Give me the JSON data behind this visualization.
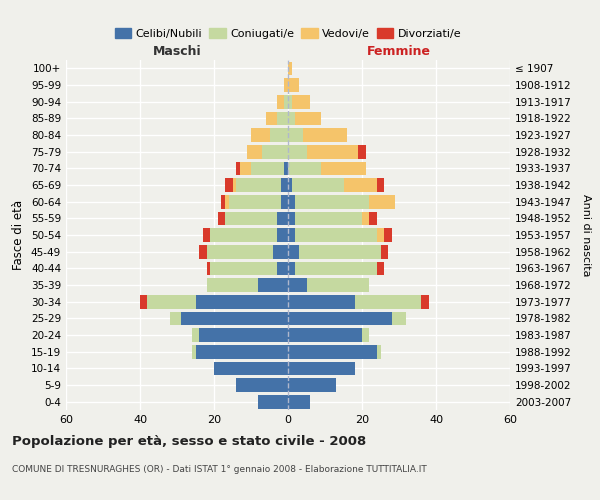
{
  "age_groups": [
    "0-4",
    "5-9",
    "10-14",
    "15-19",
    "20-24",
    "25-29",
    "30-34",
    "35-39",
    "40-44",
    "45-49",
    "50-54",
    "55-59",
    "60-64",
    "65-69",
    "70-74",
    "75-79",
    "80-84",
    "85-89",
    "90-94",
    "95-99",
    "100+"
  ],
  "birth_years": [
    "2003-2007",
    "1998-2002",
    "1993-1997",
    "1988-1992",
    "1983-1987",
    "1978-1982",
    "1973-1977",
    "1968-1972",
    "1963-1967",
    "1958-1962",
    "1953-1957",
    "1948-1952",
    "1943-1947",
    "1938-1942",
    "1933-1937",
    "1928-1932",
    "1923-1927",
    "1918-1922",
    "1913-1917",
    "1908-1912",
    "≤ 1907"
  ],
  "males": {
    "celibi": [
      8,
      14,
      20,
      25,
      24,
      29,
      25,
      8,
      3,
      4,
      3,
      3,
      2,
      2,
      1,
      0,
      0,
      0,
      0,
      0,
      0
    ],
    "coniugati": [
      0,
      0,
      0,
      1,
      2,
      3,
      13,
      14,
      18,
      18,
      18,
      14,
      14,
      12,
      9,
      7,
      5,
      3,
      1,
      0,
      0
    ],
    "vedovi": [
      0,
      0,
      0,
      0,
      0,
      0,
      0,
      0,
      0,
      0,
      0,
      0,
      1,
      1,
      3,
      4,
      5,
      3,
      2,
      1,
      0
    ],
    "divorziati": [
      0,
      0,
      0,
      0,
      0,
      0,
      2,
      0,
      1,
      2,
      2,
      2,
      1,
      2,
      1,
      0,
      0,
      0,
      0,
      0,
      0
    ]
  },
  "females": {
    "nubili": [
      6,
      13,
      18,
      24,
      20,
      28,
      18,
      5,
      2,
      3,
      2,
      2,
      2,
      1,
      0,
      0,
      0,
      0,
      0,
      0,
      0
    ],
    "coniugate": [
      0,
      0,
      0,
      1,
      2,
      4,
      18,
      17,
      22,
      22,
      22,
      18,
      20,
      14,
      9,
      5,
      4,
      2,
      1,
      0,
      0
    ],
    "vedove": [
      0,
      0,
      0,
      0,
      0,
      0,
      0,
      0,
      0,
      0,
      2,
      2,
      7,
      9,
      12,
      14,
      12,
      7,
      5,
      3,
      1
    ],
    "divorziate": [
      0,
      0,
      0,
      0,
      0,
      0,
      2,
      0,
      2,
      2,
      2,
      2,
      0,
      2,
      0,
      2,
      0,
      0,
      0,
      0,
      0
    ]
  },
  "colors": {
    "celibi": "#4472a8",
    "coniugati": "#c5d9a0",
    "vedovi": "#f5c46a",
    "divorziati": "#d93a2b"
  },
  "title": "Popolazione per età, sesso e stato civile - 2008",
  "subtitle": "COMUNE DI TRESNURAGHES (OR) - Dati ISTAT 1° gennaio 2008 - Elaborazione TUTTITALIA.IT",
  "ylabel": "Fasce di età",
  "right_ylabel": "Anni di nascita",
  "xlim": 60,
  "background_color": "#f0f0eb",
  "grid_color": "#ffffff",
  "legend_labels": [
    "Celibi/Nubili",
    "Coniugati/e",
    "Vedovi/e",
    "Divorziati/e"
  ]
}
